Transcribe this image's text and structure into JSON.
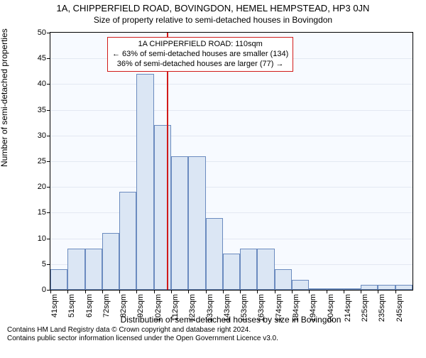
{
  "titles": {
    "main": "1A, CHIPPERFIELD ROAD, BOVINGDON, HEMEL HEMPSTEAD, HP3 0JN",
    "sub": "Size of property relative to semi-detached houses in Bovingdon"
  },
  "chart": {
    "type": "histogram",
    "background_color": "#f7faff",
    "grid_color": "#e3e8f2",
    "bar_fill": "#dbe6f4",
    "bar_border": "#6b8bbf",
    "refline_color": "#d11a1a",
    "annotation_border": "#d11a1a",
    "ylabel": "Number of semi-detached properties",
    "xlabel": "Distribution of semi-detached houses by size in Bovingdon",
    "ylim": [
      0,
      50
    ],
    "ytick_step": 5,
    "xtick_labels": [
      "41sqm",
      "51sqm",
      "61sqm",
      "72sqm",
      "82sqm",
      "92sqm",
      "102sqm",
      "112sqm",
      "123sqm",
      "133sqm",
      "143sqm",
      "153sqm",
      "163sqm",
      "174sqm",
      "184sqm",
      "194sqm",
      "204sqm",
      "214sqm",
      "225sqm",
      "235sqm",
      "245sqm"
    ],
    "values": [
      4,
      8,
      8,
      11,
      19,
      42,
      32,
      26,
      26,
      14,
      7,
      8,
      8,
      4,
      2,
      0,
      0,
      0,
      1,
      1,
      1
    ],
    "bar_width_ratio": 1.0,
    "reference_x_sqm": 110,
    "x_range_sqm": [
      41,
      255
    ],
    "annotation": {
      "line1": "1A CHIPPERFIELD ROAD: 110sqm",
      "line2": "← 63% of semi-detached houses are smaller (134)",
      "line3": "36% of semi-detached houses are larger (77) →"
    },
    "label_fontsize": 12,
    "tick_fontsize": 11
  },
  "footer": {
    "line1": "Contains HM Land Registry data © Crown copyright and database right 2024.",
    "line2": "Contains public sector information licensed under the Open Government Licence v3.0."
  }
}
